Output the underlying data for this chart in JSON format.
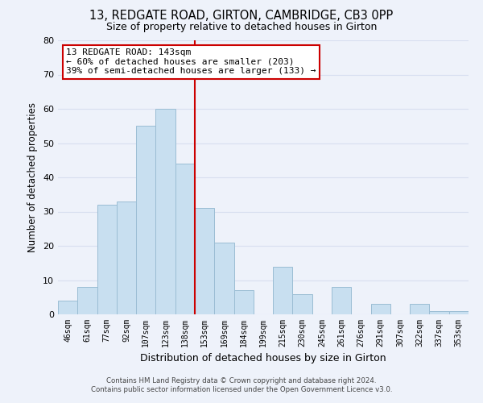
{
  "title": "13, REDGATE ROAD, GIRTON, CAMBRIDGE, CB3 0PP",
  "subtitle": "Size of property relative to detached houses in Girton",
  "xlabel": "Distribution of detached houses by size in Girton",
  "ylabel": "Number of detached properties",
  "bar_color": "#c8dff0",
  "bar_edge_color": "#9bbdd4",
  "background_color": "#eef2fa",
  "grid_color": "#d8dff0",
  "categories": [
    "46sqm",
    "61sqm",
    "77sqm",
    "92sqm",
    "107sqm",
    "123sqm",
    "138sqm",
    "153sqm",
    "169sqm",
    "184sqm",
    "199sqm",
    "215sqm",
    "230sqm",
    "245sqm",
    "261sqm",
    "276sqm",
    "291sqm",
    "307sqm",
    "322sqm",
    "337sqm",
    "353sqm"
  ],
  "values": [
    4,
    8,
    32,
    33,
    55,
    60,
    44,
    31,
    21,
    7,
    0,
    14,
    6,
    0,
    8,
    0,
    3,
    0,
    3,
    1,
    1
  ],
  "property_line_color": "#cc0000",
  "ylim": [
    0,
    80
  ],
  "yticks": [
    0,
    10,
    20,
    30,
    40,
    50,
    60,
    70,
    80
  ],
  "annotation_title": "13 REDGATE ROAD: 143sqm",
  "annotation_line1": "← 60% of detached houses are smaller (203)",
  "annotation_line2": "39% of semi-detached houses are larger (133) →",
  "annotation_box_color": "#ffffff",
  "annotation_box_edge": "#cc0000",
  "footer_line1": "Contains HM Land Registry data © Crown copyright and database right 2024.",
  "footer_line2": "Contains public sector information licensed under the Open Government Licence v3.0."
}
